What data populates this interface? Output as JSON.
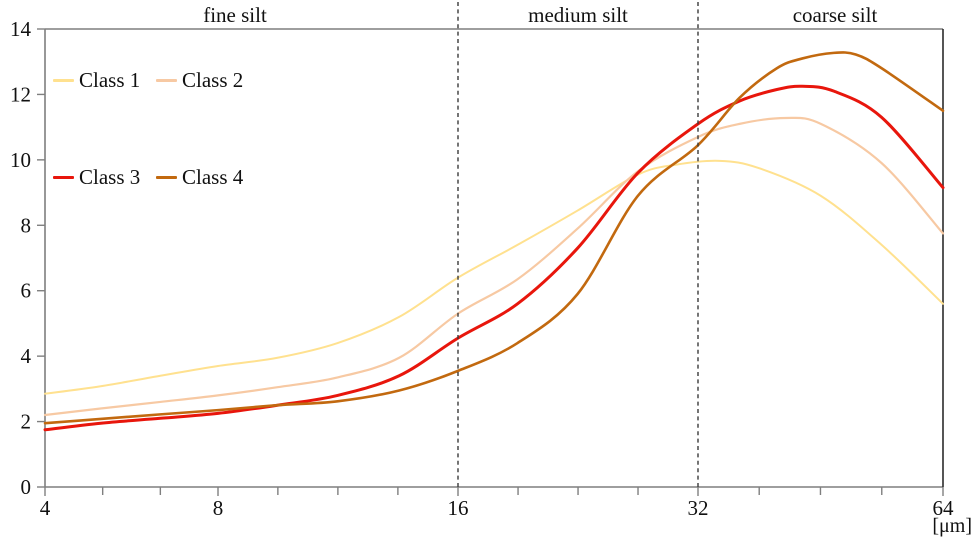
{
  "chart_data": {
    "type": "line",
    "title": "",
    "x_axis": {
      "unit_label": "[μm]",
      "scale": "log2",
      "range": [
        4,
        64
      ],
      "major_ticks": [
        4,
        8,
        16,
        32,
        64
      ],
      "minor_ticks": [
        5.04,
        6.35,
        9.51,
        11.31,
        13.45,
        19.03,
        22.63,
        26.91,
        38.05,
        45.25,
        53.82
      ]
    },
    "y_axis": {
      "range": [
        0,
        14
      ],
      "ticks": [
        0,
        2,
        4,
        6,
        8,
        10,
        12,
        14
      ]
    },
    "regions": [
      {
        "label": "fine silt",
        "from": 4,
        "to": 16
      },
      {
        "label": "medium silt",
        "from": 16,
        "to": 32
      },
      {
        "label": "coarse silt",
        "from": 32,
        "to": 64
      }
    ],
    "boundary_lines": [
      16,
      32
    ],
    "legend_position": "top-left",
    "grid": false,
    "series": [
      {
        "name": "Class 1",
        "color": "#FFE18F",
        "width": 2,
        "points": [
          [
            4,
            2.85
          ],
          [
            5,
            3.08
          ],
          [
            6.35,
            3.4
          ],
          [
            8,
            3.7
          ],
          [
            9.5,
            3.95
          ],
          [
            11.3,
            4.4
          ],
          [
            13.5,
            5.2
          ],
          [
            16,
            6.4
          ],
          [
            19,
            7.4
          ],
          [
            22.6,
            8.45
          ],
          [
            26.9,
            9.55
          ],
          [
            30,
            9.85
          ],
          [
            34,
            9.97
          ],
          [
            38,
            9.75
          ],
          [
            45.3,
            8.9
          ],
          [
            53.8,
            7.4
          ],
          [
            64,
            5.6
          ]
        ]
      },
      {
        "name": "Class 2",
        "color": "#F7C9A3",
        "width": 2.2,
        "points": [
          [
            4,
            2.2
          ],
          [
            5,
            2.4
          ],
          [
            6.35,
            2.6
          ],
          [
            8,
            2.8
          ],
          [
            9.5,
            3.05
          ],
          [
            11.3,
            3.35
          ],
          [
            13.5,
            3.95
          ],
          [
            16,
            5.3
          ],
          [
            19,
            6.35
          ],
          [
            22.6,
            7.9
          ],
          [
            26.9,
            9.65
          ],
          [
            32,
            10.7
          ],
          [
            36,
            11.1
          ],
          [
            41,
            11.28
          ],
          [
            45.3,
            11.1
          ],
          [
            53.8,
            9.9
          ],
          [
            64,
            7.75
          ]
        ]
      },
      {
        "name": "Class 3",
        "color": "#E8160C",
        "width": 3,
        "points": [
          [
            4,
            1.75
          ],
          [
            5,
            1.95
          ],
          [
            6.35,
            2.1
          ],
          [
            8,
            2.25
          ],
          [
            9.5,
            2.5
          ],
          [
            11.3,
            2.8
          ],
          [
            13.5,
            3.4
          ],
          [
            16,
            4.55
          ],
          [
            19,
            5.6
          ],
          [
            22.6,
            7.3
          ],
          [
            26.9,
            9.6
          ],
          [
            32,
            11.1
          ],
          [
            36,
            11.8
          ],
          [
            40,
            12.15
          ],
          [
            43,
            12.25
          ],
          [
            47,
            12.1
          ],
          [
            53.8,
            11.3
          ],
          [
            64,
            9.15
          ]
        ]
      },
      {
        "name": "Class 4",
        "color": "#C2690F",
        "width": 2.6,
        "points": [
          [
            4,
            1.95
          ],
          [
            5,
            2.08
          ],
          [
            6.35,
            2.22
          ],
          [
            8,
            2.35
          ],
          [
            9.5,
            2.5
          ],
          [
            11.3,
            2.62
          ],
          [
            13.5,
            2.95
          ],
          [
            16,
            3.55
          ],
          [
            19,
            4.4
          ],
          [
            22.6,
            5.9
          ],
          [
            26.9,
            8.9
          ],
          [
            32,
            10.45
          ],
          [
            36,
            11.9
          ],
          [
            40,
            12.8
          ],
          [
            43,
            13.1
          ],
          [
            47,
            13.27
          ],
          [
            50,
            13.22
          ],
          [
            53.8,
            12.8
          ],
          [
            64,
            11.5
          ]
        ]
      }
    ]
  },
  "frame": {
    "axis_color": "#7f7f7f",
    "right_border_color": "#2b2b2b",
    "dash_color": "#3a3a3a",
    "text_color": "#111111"
  }
}
